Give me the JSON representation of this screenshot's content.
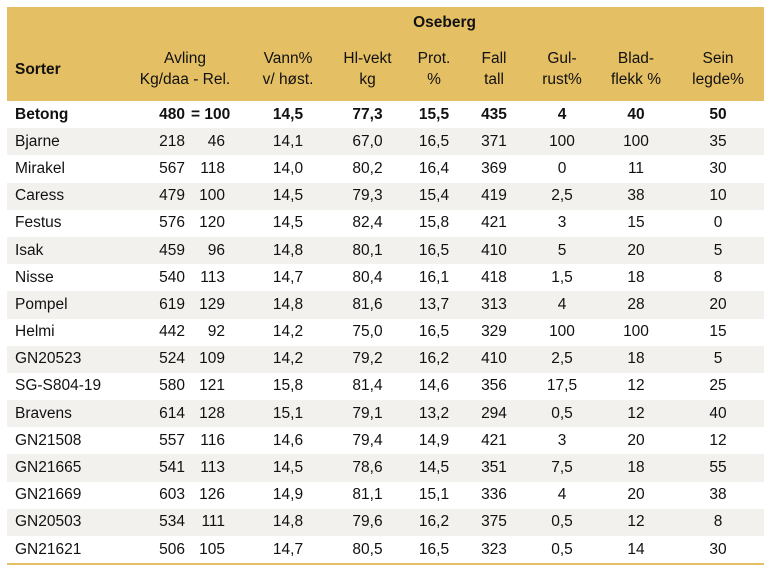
{
  "header": {
    "group_title": "Oseberg",
    "sorter": "Sorter",
    "avling_line1": "Avling",
    "avling_line2": "Kg/daa - Rel.",
    "vann_line1": "Vann%",
    "vann_line2": "v/ høst.",
    "hl_line1": "Hl-vekt",
    "hl_line2": "kg",
    "prot_line1": "Prot.",
    "prot_line2": "%",
    "fall_line1": "Fall",
    "fall_line2": "tall",
    "gul_line1": "Gul-",
    "gul_line2": "rust%",
    "blad_line1": "Blad-",
    "blad_line2": "flekk %",
    "sein_line1": "Sein",
    "sein_line2": "legde%"
  },
  "rows": [
    {
      "name": "Betong",
      "kg": "480",
      "rel": "= 100",
      "vann": "14,5",
      "hl": "77,3",
      "prot": "15,5",
      "fall": "435",
      "gul": "4",
      "blad": "40",
      "sein": "50"
    },
    {
      "name": "Bjarne",
      "kg": "218",
      "rel": "46",
      "vann": "14,1",
      "hl": "67,0",
      "prot": "16,5",
      "fall": "371",
      "gul": "100",
      "blad": "100",
      "sein": "35"
    },
    {
      "name": "Mirakel",
      "kg": "567",
      "rel": "118",
      "vann": "14,0",
      "hl": "80,2",
      "prot": "16,4",
      "fall": "369",
      "gul": "0",
      "blad": "11",
      "sein": "30"
    },
    {
      "name": "Caress",
      "kg": "479",
      "rel": "100",
      "vann": "14,5",
      "hl": "79,3",
      "prot": "15,4",
      "fall": "419",
      "gul": "2,5",
      "blad": "38",
      "sein": "10"
    },
    {
      "name": "Festus",
      "kg": "576",
      "rel": "120",
      "vann": "14,5",
      "hl": "82,4",
      "prot": "15,8",
      "fall": "421",
      "gul": "3",
      "blad": "15",
      "sein": "0"
    },
    {
      "name": "Isak",
      "kg": "459",
      "rel": "96",
      "vann": "14,8",
      "hl": "80,1",
      "prot": "16,5",
      "fall": "410",
      "gul": "5",
      "blad": "20",
      "sein": "5"
    },
    {
      "name": "Nisse",
      "kg": "540",
      "rel": "113",
      "vann": "14,7",
      "hl": "80,4",
      "prot": "16,1",
      "fall": "418",
      "gul": "1,5",
      "blad": "18",
      "sein": "8"
    },
    {
      "name": "Pompel",
      "kg": "619",
      "rel": "129",
      "vann": "14,8",
      "hl": "81,6",
      "prot": "13,7",
      "fall": "313",
      "gul": "4",
      "blad": "28",
      "sein": "20"
    },
    {
      "name": "Helmi",
      "kg": "442",
      "rel": "92",
      "vann": "14,2",
      "hl": "75,0",
      "prot": "16,5",
      "fall": "329",
      "gul": "100",
      "blad": "100",
      "sein": "15"
    },
    {
      "name": "GN20523",
      "kg": "524",
      "rel": "109",
      "vann": "14,2",
      "hl": "79,2",
      "prot": "16,2",
      "fall": "410",
      "gul": "2,5",
      "blad": "18",
      "sein": "5"
    },
    {
      "name": "SG-S804-19",
      "kg": "580",
      "rel": "121",
      "vann": "15,8",
      "hl": "81,4",
      "prot": "14,6",
      "fall": "356",
      "gul": "17,5",
      "blad": "12",
      "sein": "25"
    },
    {
      "name": "Bravens",
      "kg": "614",
      "rel": "128",
      "vann": "15,1",
      "hl": "79,1",
      "prot": "13,2",
      "fall": "294",
      "gul": "0,5",
      "blad": "12",
      "sein": "40"
    },
    {
      "name": "GN21508",
      "kg": "557",
      "rel": "116",
      "vann": "14,6",
      "hl": "79,4",
      "prot": "14,9",
      "fall": "421",
      "gul": "3",
      "blad": "20",
      "sein": "12"
    },
    {
      "name": "GN21665",
      "kg": "541",
      "rel": "113",
      "vann": "14,5",
      "hl": "78,6",
      "prot": "14,5",
      "fall": "351",
      "gul": "7,5",
      "blad": "18",
      "sein": "55"
    },
    {
      "name": "GN21669",
      "kg": "603",
      "rel": "126",
      "vann": "14,9",
      "hl": "81,1",
      "prot": "15,1",
      "fall": "336",
      "gul": "4",
      "blad": "20",
      "sein": "38"
    },
    {
      "name": "GN20503",
      "kg": "534",
      "rel": "111",
      "vann": "14,8",
      "hl": "79,6",
      "prot": "16,2",
      "fall": "375",
      "gul": "0,5",
      "blad": "12",
      "sein": "8"
    },
    {
      "name": "GN21621",
      "kg": "506",
      "rel": "105",
      "vann": "14,7",
      "hl": "80,5",
      "prot": "16,5",
      "fall": "323",
      "gul": "0,5",
      "blad": "14",
      "sein": "30"
    }
  ]
}
